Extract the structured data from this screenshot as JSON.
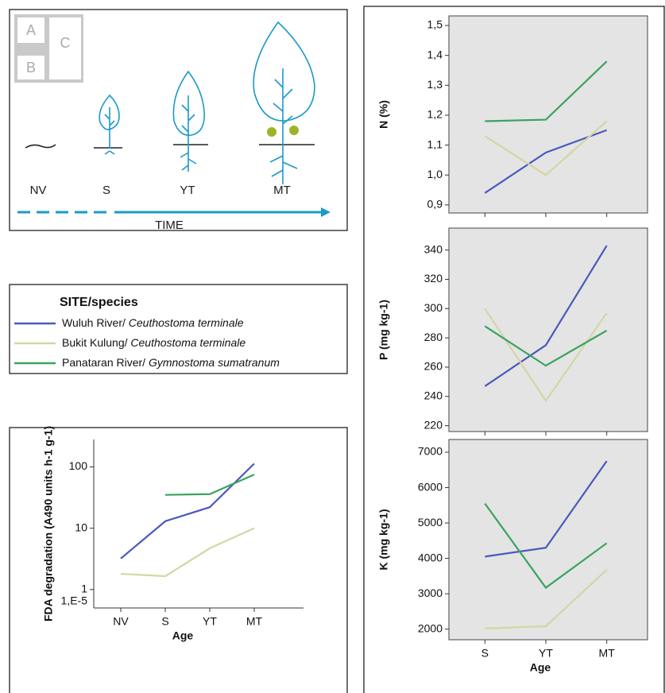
{
  "diagram": {
    "icon_labels": [
      "A",
      "B",
      "C"
    ],
    "stages": [
      "NV",
      "S",
      "YT",
      "MT"
    ],
    "axis_label": "TIME"
  },
  "legend": {
    "title": "SITE/species",
    "items": [
      {
        "site": "Wuluh River/ ",
        "species": "Ceuthostoma terminale",
        "color": "#4a58bd"
      },
      {
        "site": "Bukit Kulung/ ",
        "species": "Ceuthostoma terminale",
        "color": "#d3d6a2"
      },
      {
        "site": "Panataran River/ ",
        "species": "Gymnostoma sumatranum",
        "color": "#3aa35f"
      }
    ]
  },
  "chart_data": [
    {
      "type": "line",
      "y_label": "N (%)",
      "categories": [
        null,
        null,
        null
      ],
      "ylim": [
        0.873,
        1.532
      ],
      "yticks": [
        {
          "value": 0.9,
          "label": "0,9"
        },
        {
          "value": 1.0,
          "label": "1,0"
        },
        {
          "value": 1.1,
          "label": "1,1"
        },
        {
          "value": 1.2,
          "label": "1,2"
        },
        {
          "value": 1.3,
          "label": "1,3"
        },
        {
          "value": 1.4,
          "label": "1,4"
        },
        {
          "value": 1.5,
          "label": "1,5"
        }
      ],
      "series": [
        {
          "color": "#4a58bd",
          "values": [
            0.94,
            1.075,
            1.15
          ]
        },
        {
          "color": "#d3d6a2",
          "values": [
            1.13,
            1.0,
            1.18
          ]
        },
        {
          "color": "#3aa35f",
          "values": [
            1.18,
            1.185,
            1.38
          ]
        }
      ]
    },
    {
      "type": "line",
      "y_label": "P (mg kg-1)",
      "categories": [
        null,
        null,
        null
      ],
      "ylim": [
        216,
        355
      ],
      "yticks": [
        220,
        240,
        260,
        280,
        300,
        320,
        340
      ],
      "series": [
        {
          "color": "#4a58bd",
          "values": [
            247,
            275,
            343
          ]
        },
        {
          "color": "#d3d6a2",
          "values": [
            300,
            237,
            297
          ]
        },
        {
          "color": "#3aa35f",
          "values": [
            288,
            261,
            285
          ]
        }
      ]
    },
    {
      "type": "line",
      "y_label": "K (mg kg-1)",
      "x_label": "Age",
      "categories": [
        "S",
        "YT",
        "MT"
      ],
      "ylim": [
        1700,
        7360
      ],
      "yticks": [
        2000,
        3000,
        4000,
        5000,
        6000,
        7000
      ],
      "series": [
        {
          "color": "#4a58bd",
          "values": [
            4050,
            4300,
            6750
          ]
        },
        {
          "color": "#d3d6a2",
          "values": [
            2020,
            2080,
            3680
          ]
        },
        {
          "color": "#3aa35f",
          "values": [
            5550,
            3170,
            4430
          ]
        }
      ]
    },
    {
      "type": "line",
      "y_label": "FDA degradation (A490 units h-1 g-1)",
      "x_label": "Age",
      "categories": [
        "NV",
        "S",
        "YT",
        "MT"
      ],
      "log_y": true,
      "ylim": [
        0.5,
        280
      ],
      "yticks": [
        1,
        10,
        100
      ],
      "y_min_label": "1,E-5",
      "series": [
        {
          "color": "#4a58bd",
          "values": [
            3.2,
            13,
            22,
            113
          ]
        },
        {
          "color": "#d3d6a2",
          "values": [
            1.8,
            1.65,
            4.7,
            10
          ]
        },
        {
          "color": "#3aa35f",
          "values": [
            null,
            35,
            36,
            75
          ]
        }
      ]
    }
  ]
}
